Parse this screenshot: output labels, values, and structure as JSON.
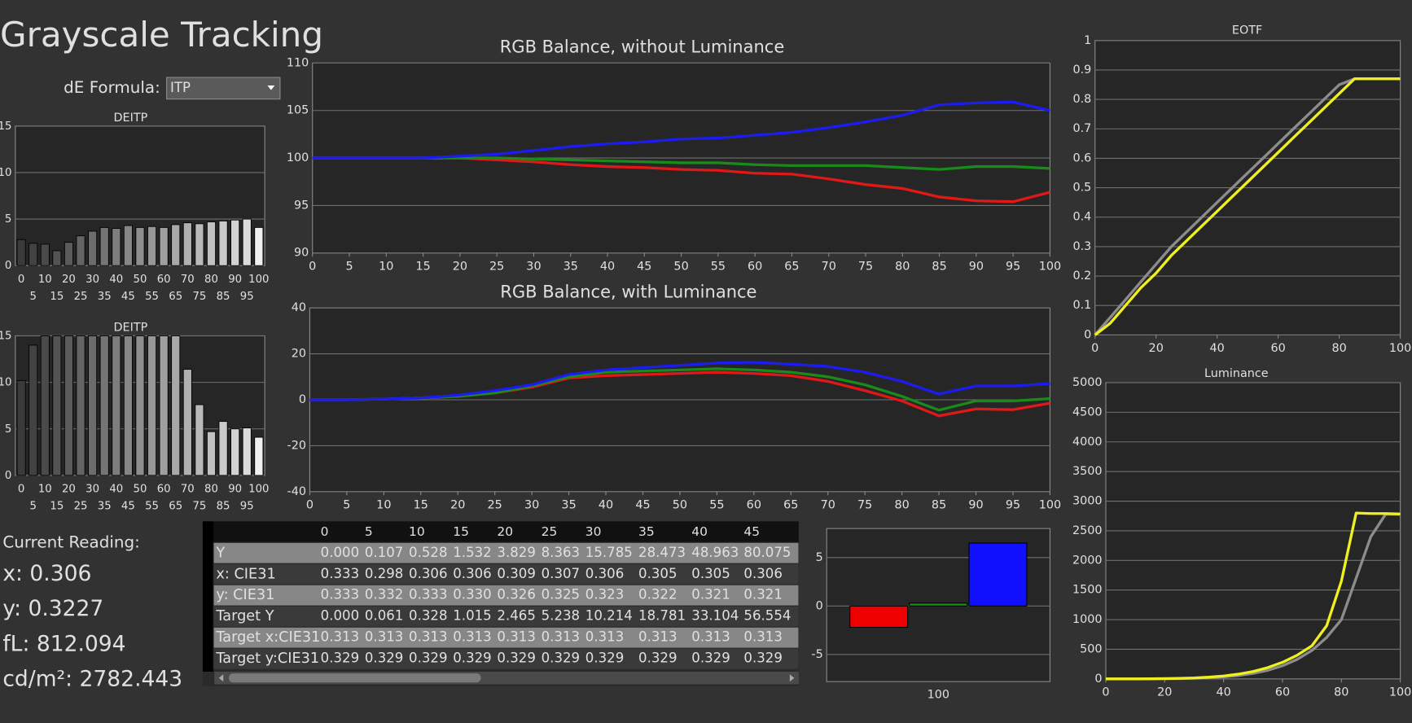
{
  "title": "Grayscale Tracking",
  "de_formula": {
    "label": "dE Formula:",
    "value": "ITP"
  },
  "current_reading": {
    "heading": "Current Reading:",
    "lines": [
      "x: 0.306",
      "y: 0.3227",
      "fL: 812.094",
      "cd/m²: 2782.443"
    ]
  },
  "table": {
    "columns": [
      "0",
      "5",
      "10",
      "15",
      "20",
      "25",
      "30",
      "35",
      "40",
      "45"
    ],
    "rows": [
      {
        "label": "Y",
        "values": [
          "0.000",
          "0.107",
          "0.528",
          "1.532",
          "3.829",
          "8.363",
          "15.785",
          "28.473",
          "48.963",
          "80.075"
        ]
      },
      {
        "label": "x: CIE31",
        "values": [
          "0.333",
          "0.298",
          "0.306",
          "0.306",
          "0.309",
          "0.307",
          "0.306",
          "0.305",
          "0.305",
          "0.306"
        ]
      },
      {
        "label": "y: CIE31",
        "values": [
          "0.333",
          "0.332",
          "0.333",
          "0.330",
          "0.326",
          "0.325",
          "0.323",
          "0.322",
          "0.321",
          "0.321"
        ]
      },
      {
        "label": "Target Y",
        "values": [
          "0.000",
          "0.061",
          "0.328",
          "1.015",
          "2.465",
          "5.238",
          "10.214",
          "18.781",
          "33.104",
          "56.554"
        ]
      },
      {
        "label": "Target x:CIE31",
        "values": [
          "0.313",
          "0.313",
          "0.313",
          "0.313",
          "0.313",
          "0.313",
          "0.313",
          "0.313",
          "0.313",
          "0.313"
        ]
      },
      {
        "label": "Target y:CIE31",
        "values": [
          "0.329",
          "0.329",
          "0.329",
          "0.329",
          "0.329",
          "0.329",
          "0.329",
          "0.329",
          "0.329",
          "0.329"
        ]
      }
    ]
  },
  "chart_data": [
    {
      "type": "bar",
      "title": "DEITP",
      "categories": [
        0,
        5,
        10,
        15,
        20,
        25,
        30,
        35,
        40,
        45,
        50,
        55,
        60,
        65,
        70,
        75,
        80,
        85,
        90,
        95,
        100
      ],
      "values": [
        2.8,
        2.4,
        2.3,
        1.6,
        2.5,
        3.2,
        3.7,
        4.1,
        4.0,
        4.3,
        4.1,
        4.2,
        4.1,
        4.4,
        4.6,
        4.5,
        4.7,
        4.8,
        4.9,
        5.0,
        4.1
      ],
      "colors": [
        "#3a3a3a",
        "#424242",
        "#4a4a4a",
        "#535353",
        "#5b5b5b",
        "#646464",
        "#6c6c6c",
        "#757575",
        "#7d7d7d",
        "#868686",
        "#8e8e8e",
        "#979797",
        "#9f9f9f",
        "#a8a8a8",
        "#b0b0b0",
        "#b9b9b9",
        "#c1c1c1",
        "#cacaca",
        "#d2d2d2",
        "#dbdbdb",
        "#f0f0f0"
      ],
      "ylim": [
        0,
        15
      ],
      "yticks": [
        0,
        5,
        10,
        15
      ],
      "grid": true
    },
    {
      "type": "bar",
      "title": "DEITP",
      "categories": [
        0,
        5,
        10,
        15,
        20,
        25,
        30,
        35,
        40,
        45,
        50,
        55,
        60,
        65,
        70,
        75,
        80,
        85,
        90,
        95,
        100
      ],
      "values": [
        10.2,
        14.0,
        15,
        15,
        15,
        15,
        15,
        15,
        15,
        15,
        15,
        15,
        15,
        15,
        11.4,
        7.6,
        4.7,
        5.8,
        5.0,
        5.1,
        4.1
      ],
      "colors": [
        "#3a3a3a",
        "#424242",
        "#4a4a4a",
        "#535353",
        "#5b5b5b",
        "#646464",
        "#6c6c6c",
        "#757575",
        "#7d7d7d",
        "#868686",
        "#8e8e8e",
        "#979797",
        "#9f9f9f",
        "#a8a8a8",
        "#b0b0b0",
        "#b9b9b9",
        "#c1c1c1",
        "#cacaca",
        "#d2d2d2",
        "#dbdbdb",
        "#f0f0f0"
      ],
      "ylim": [
        0,
        15
      ],
      "yticks": [
        0,
        5,
        10,
        15
      ],
      "grid": true
    },
    {
      "type": "line",
      "title": "RGB Balance, without Luminance",
      "x": [
        0,
        5,
        10,
        15,
        20,
        25,
        30,
        35,
        40,
        45,
        50,
        55,
        60,
        65,
        70,
        75,
        80,
        85,
        90,
        95,
        100
      ],
      "series": [
        {
          "color": "#e01818",
          "values": [
            100,
            100,
            100,
            100,
            100,
            99.8,
            99.6,
            99.3,
            99.1,
            99.0,
            98.8,
            98.7,
            98.4,
            98.3,
            97.8,
            97.2,
            96.8,
            95.9,
            95.5,
            95.4,
            96.4
          ]
        },
        {
          "color": "#1a8a1a",
          "values": [
            100,
            100,
            100,
            100,
            100,
            100,
            99.9,
            99.8,
            99.7,
            99.6,
            99.5,
            99.5,
            99.3,
            99.2,
            99.2,
            99.2,
            99.0,
            98.8,
            99.1,
            99.1,
            98.9
          ]
        },
        {
          "color": "#1c1cf0",
          "values": [
            100,
            100,
            100,
            100,
            100.2,
            100.4,
            100.8,
            101.2,
            101.5,
            101.7,
            102.0,
            102.1,
            102.4,
            102.7,
            103.2,
            103.8,
            104.5,
            105.6,
            105.8,
            105.9,
            105.0
          ]
        }
      ],
      "xlim": [
        0,
        100
      ],
      "xticks": [
        0,
        5,
        10,
        15,
        20,
        25,
        30,
        35,
        40,
        45,
        50,
        55,
        60,
        65,
        70,
        75,
        80,
        85,
        90,
        95,
        100
      ],
      "ylim": [
        90,
        110
      ],
      "yticks": [
        90,
        95,
        100,
        105,
        110
      ],
      "grid": true
    },
    {
      "type": "line",
      "title": "RGB Balance, with Luminance",
      "x": [
        0,
        5,
        10,
        15,
        20,
        25,
        30,
        35,
        40,
        45,
        50,
        55,
        60,
        65,
        70,
        75,
        80,
        85,
        90,
        95,
        100
      ],
      "series": [
        {
          "color": "#e01818",
          "values": [
            0,
            0,
            0.3,
            0.8,
            1.5,
            3,
            5.5,
            9.5,
            10.5,
            11,
            11.5,
            12,
            11.5,
            10.5,
            8,
            4,
            -0.5,
            -7,
            -4,
            -4.3,
            -1.5
          ]
        },
        {
          "color": "#1a8a1a",
          "values": [
            0,
            0,
            0.3,
            0.8,
            1.5,
            3,
            6,
            10,
            12,
            12.5,
            13,
            13.5,
            13,
            12,
            10,
            6.5,
            1.5,
            -4.5,
            -0.5,
            -0.5,
            0.5
          ]
        },
        {
          "color": "#1c1cf0",
          "values": [
            0,
            0,
            0.3,
            0.8,
            2,
            4,
            6.5,
            11,
            13,
            14,
            15,
            16,
            16.3,
            15.5,
            14.5,
            12,
            8,
            2.5,
            6,
            6,
            7
          ]
        }
      ],
      "xlim": [
        0,
        100
      ],
      "xticks": [
        0,
        5,
        10,
        15,
        20,
        25,
        30,
        35,
        40,
        45,
        50,
        55,
        60,
        65,
        70,
        75,
        80,
        85,
        90,
        95,
        100
      ],
      "ylim": [
        -40,
        40
      ],
      "yticks": [
        -40,
        -20,
        0,
        20,
        40
      ],
      "grid": true
    },
    {
      "type": "line",
      "title": "EOTF",
      "x": [
        0,
        5,
        10,
        15,
        20,
        25,
        30,
        35,
        40,
        45,
        50,
        55,
        60,
        65,
        70,
        75,
        80,
        85,
        90,
        95,
        100
      ],
      "series": [
        {
          "color": "#8c8c8c",
          "values": [
            0,
            0.06,
            0.12,
            0.18,
            0.24,
            0.3,
            0.35,
            0.4,
            0.45,
            0.5,
            0.55,
            0.6,
            0.65,
            0.7,
            0.75,
            0.8,
            0.85,
            0.87,
            0.87,
            0.87,
            0.87
          ]
        },
        {
          "color": "#f0f020",
          "values": [
            0,
            0.04,
            0.1,
            0.16,
            0.21,
            0.27,
            0.32,
            0.37,
            0.42,
            0.47,
            0.52,
            0.57,
            0.62,
            0.67,
            0.72,
            0.77,
            0.82,
            0.87,
            0.87,
            0.87,
            0.87
          ]
        }
      ],
      "xlim": [
        0,
        100
      ],
      "xticks": [
        0,
        20,
        40,
        60,
        80,
        100
      ],
      "ylim": [
        0,
        1
      ],
      "yticks": [
        0,
        0.1,
        0.2,
        0.3,
        0.4,
        0.5,
        0.6,
        0.7,
        0.8,
        0.9,
        1
      ],
      "grid": true
    },
    {
      "type": "line",
      "title": "Luminance",
      "x": [
        0,
        5,
        10,
        15,
        20,
        25,
        30,
        35,
        40,
        45,
        50,
        55,
        60,
        65,
        70,
        75,
        80,
        85,
        90,
        95,
        100
      ],
      "series": [
        {
          "color": "#8c8c8c",
          "values": [
            0,
            0.06,
            0.33,
            1.0,
            2.5,
            5.2,
            10.2,
            18.8,
            33.1,
            56.6,
            92,
            145,
            222,
            330,
            480,
            700,
            1000,
            1700,
            2400,
            2780,
            2780
          ]
        },
        {
          "color": "#f0f020",
          "values": [
            0,
            0.107,
            0.528,
            1.532,
            3.829,
            8.363,
            15.785,
            28.473,
            48.963,
            80.075,
            125,
            190,
            280,
            400,
            560,
            900,
            1650,
            2800,
            2790,
            2790,
            2782
          ]
        }
      ],
      "xlim": [
        0,
        100
      ],
      "xticks": [
        0,
        20,
        40,
        60,
        80,
        100
      ],
      "ylim": [
        0,
        5000
      ],
      "yticks": [
        0,
        500,
        1000,
        1500,
        2000,
        2500,
        3000,
        3500,
        4000,
        4500,
        5000
      ],
      "grid": true
    },
    {
      "type": "bar",
      "categories": [
        "100"
      ],
      "series": [
        {
          "color": "#ee0000",
          "values": [
            -2.2
          ]
        },
        {
          "color": "#1a8a1a",
          "values": [
            0.3
          ]
        },
        {
          "color": "#1010ff",
          "values": [
            6.5
          ]
        }
      ],
      "ylim": [
        -7.8,
        8
      ],
      "yticks": [
        -5,
        0,
        5
      ],
      "grid": true
    }
  ]
}
